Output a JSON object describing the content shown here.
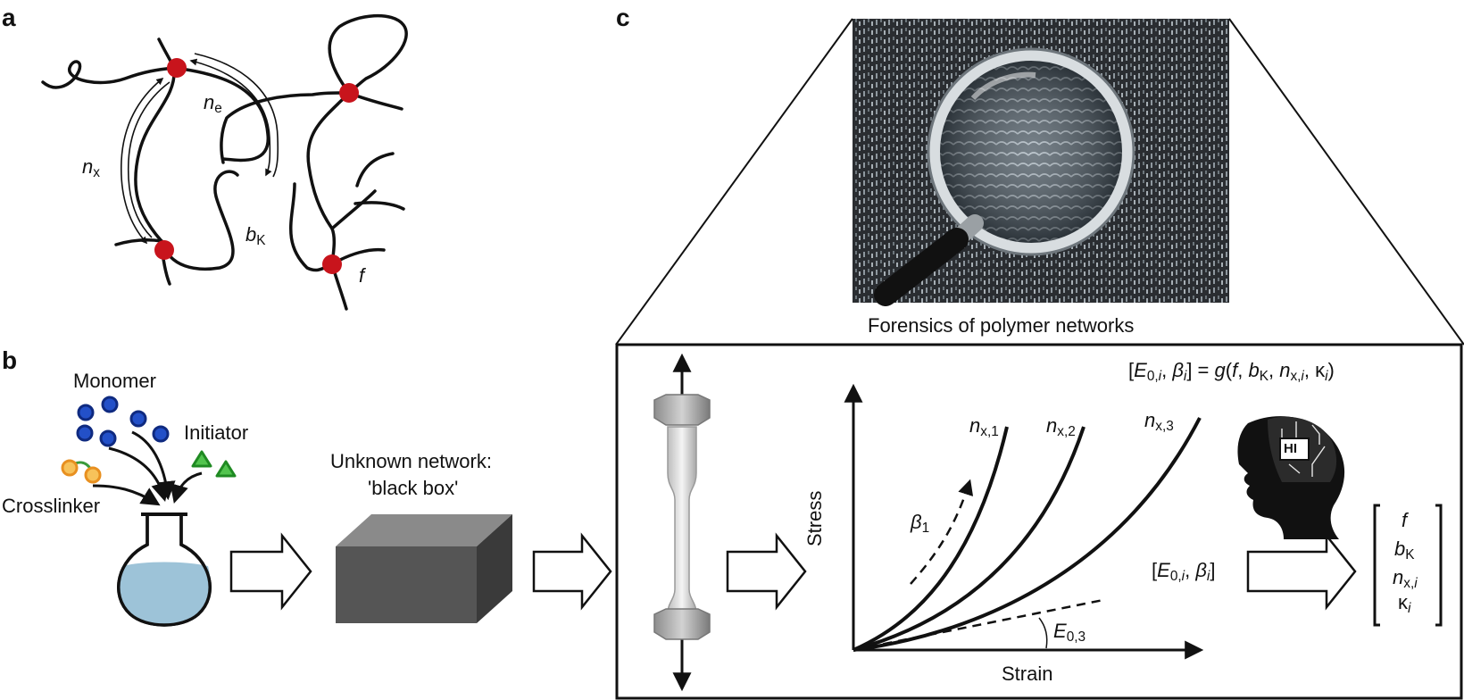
{
  "panels": {
    "a": "a",
    "b": "b",
    "c": "c"
  },
  "panel_a": {
    "n_e": {
      "sym": "n",
      "sub": "e"
    },
    "n_x": {
      "sym": "n",
      "sub": "x"
    },
    "b_K": {
      "sym": "b",
      "sub": "K"
    },
    "f": "f"
  },
  "panel_b": {
    "monomer": "Monomer",
    "initiator": "Initiator",
    "crosslinker": "Crosslinker",
    "unknown_line1": "Unknown network:",
    "unknown_line2": "'black box'"
  },
  "panel_c": {
    "image_caption": "Forensics of polymer networks",
    "equation": {
      "open": "[",
      "E": "E",
      "E_sub": "0,",
      "E_sub_i": "i",
      "sep": ", ",
      "beta": "β",
      "beta_sub": "i",
      "mid": "] = ",
      "g": "g",
      "args_open": "(",
      "f": "f",
      "b": "b",
      "b_sub": "K",
      "n": "n",
      "n_sub": "x,",
      "n_sub_i": "i",
      "kappa": "κ",
      "kappa_sub": "i",
      "close": ")"
    },
    "chart_labels": {
      "ylabel": "Stress",
      "xlabel": "Strain",
      "n1": {
        "sym": "n",
        "sub": "x,1"
      },
      "n2": {
        "sym": "n",
        "sub": "x,2"
      },
      "n3": {
        "sym": "n",
        "sub": "x,3"
      },
      "beta1": {
        "sym": "β",
        "sub": "1"
      },
      "E03": {
        "sym": "E",
        "sub": "0,3"
      }
    },
    "hi_badge": "HI",
    "input_vector": {
      "E": "E",
      "E_sub": "0,",
      "E_sub_i": "i",
      "beta": "β",
      "beta_sub": "i"
    },
    "output_vector": {
      "f": "f",
      "b": "b",
      "b_sub": "K",
      "n": "n",
      "n_sub": "x,",
      "n_sub_i": "i",
      "kappa": "κ",
      "kappa_sub": "i"
    }
  },
  "colors": {
    "crosslink_node": "#c8141c",
    "monomer": "#2350c8",
    "initiator": "#3cb43c",
    "crosslinker": "#f0a830",
    "flask_liquid": "#9dc3d8",
    "box_front": "#555555",
    "box_top": "#8a8a8a",
    "box_side": "#3a3a3a"
  }
}
